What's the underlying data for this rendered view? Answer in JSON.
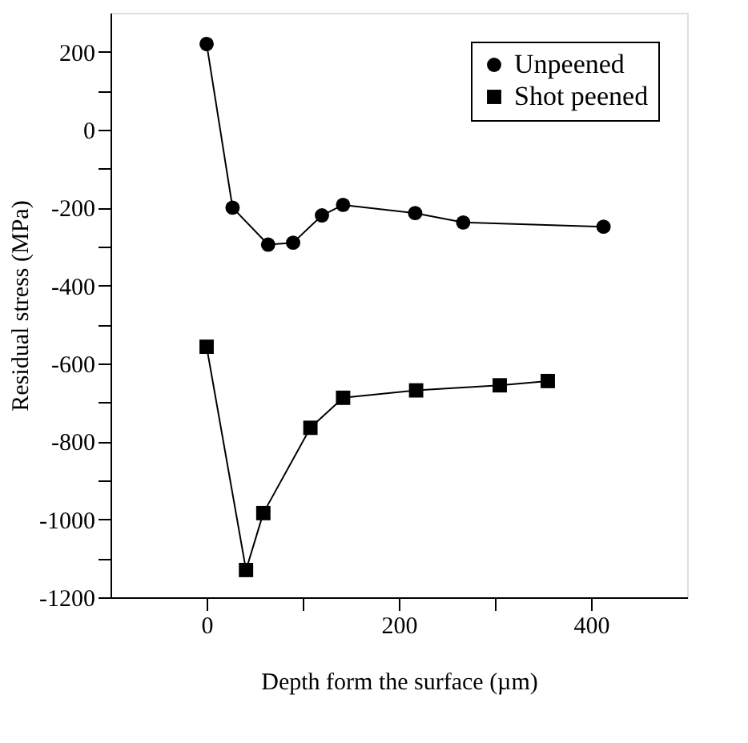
{
  "chart_data": {
    "type": "line",
    "xlabel": "Depth form the surface (µm)",
    "ylabel": "Residual stress (MPa)",
    "xlim": [
      -100,
      500
    ],
    "xticks": [
      0,
      {
        "value": 100,
        "label": null
      },
      200,
      {
        "value": 300,
        "label": null
      },
      400
    ],
    "ylim": [
      -1200,
      300
    ],
    "yticks": [
      -1200,
      {
        "value": -1100,
        "label": null
      },
      -1000,
      {
        "value": -900,
        "label": null
      },
      -800,
      {
        "value": -700,
        "label": null
      },
      -600,
      {
        "value": -500,
        "label": null
      },
      -400,
      {
        "value": -300,
        "label": null
      },
      -200,
      {
        "value": -100,
        "label": null
      },
      0,
      {
        "value": 100,
        "label": null
      },
      200
    ],
    "grid": false,
    "legend": "top right",
    "line_style": "solid",
    "series": [
      {
        "name": "Unpeened",
        "color": "#000000",
        "marker": "circle",
        "x": [
          0,
          27,
          64,
          90,
          120,
          142,
          217,
          267,
          413
        ],
        "values": [
          220,
          -200,
          -295,
          -290,
          -220,
          -193,
          -214,
          -238,
          -249
        ]
      },
      {
        "name": "Shot peened",
        "color": "#000000",
        "marker": "square",
        "x": [
          0,
          41,
          59,
          108,
          142,
          218,
          305,
          355
        ],
        "values": [
          -557,
          -1130,
          -984,
          -765,
          -688,
          -669,
          -656,
          -645
        ]
      }
    ]
  }
}
